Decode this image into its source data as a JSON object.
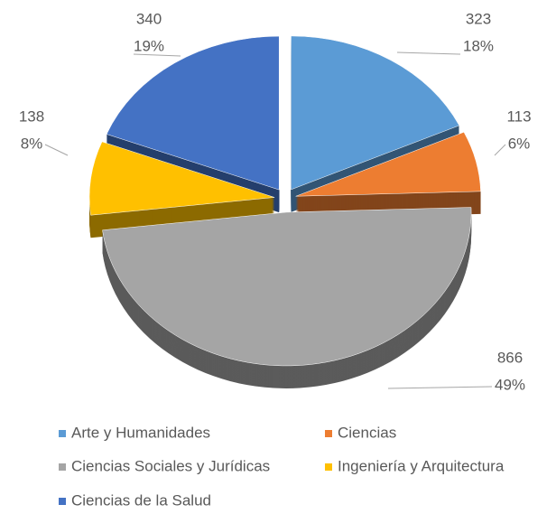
{
  "chart_data": {
    "type": "pie3d",
    "categories": [
      "Arte y Humanidades",
      "Ciencias",
      "Ciencias Sociales y Jurídicas",
      "Ingeniería y Arquitectura",
      "Ciencias de la Salud"
    ],
    "values": [
      323,
      113,
      866,
      138,
      340
    ],
    "percent_labels": [
      "18%",
      "6%",
      "49%",
      "8%",
      "19%"
    ],
    "colors": [
      "#5b9bd5",
      "#ed7d31",
      "#a5a5a5",
      "#ffc000",
      "#4472c4"
    ],
    "legend": "bottom"
  }
}
